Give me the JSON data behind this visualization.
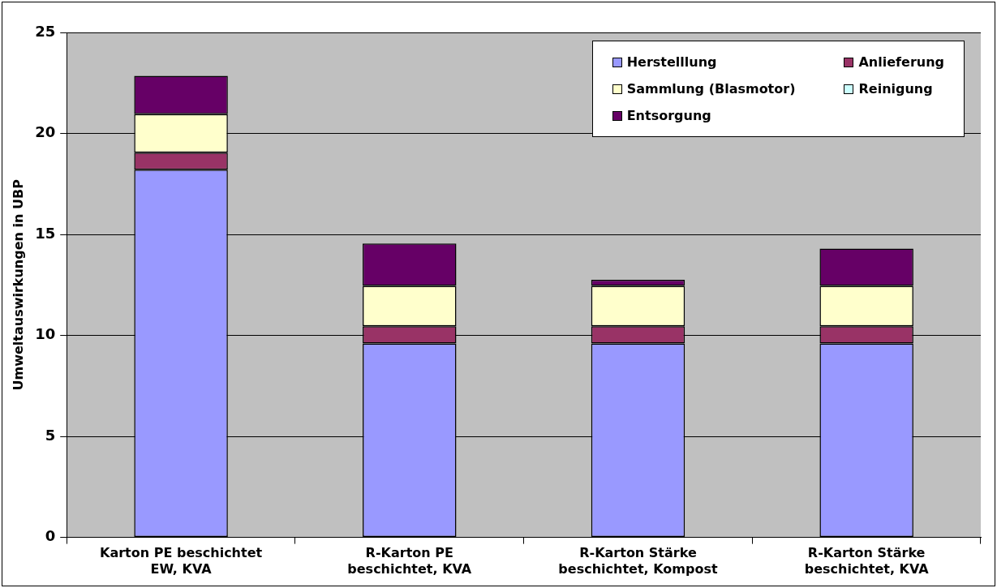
{
  "chart_data": {
    "type": "bar",
    "stacked": true,
    "ylabel": "Umweltauswirkungen in UBP",
    "categories": [
      "Karton PE beschichtet EW, KVA",
      "R-Karton PE beschichtet, KVA",
      "R-Karton Stärke beschichtet, Kompost",
      "R-Karton Stärke beschichtet, KVA"
    ],
    "series": [
      {
        "name": "Herstelllung",
        "color": "#9999ff",
        "values": [
          18.2,
          9.6,
          9.6,
          9.6
        ]
      },
      {
        "name": "Anlieferung",
        "color": "#993366",
        "values": [
          0.85,
          0.85,
          0.85,
          0.85
        ]
      },
      {
        "name": "Sammlung (Blasmotor)",
        "color": "#ffffcc",
        "values": [
          1.9,
          2.0,
          2.0,
          2.0
        ]
      },
      {
        "name": "Reinigung",
        "color": "#ccffff",
        "values": [
          0,
          0,
          0,
          0
        ]
      },
      {
        "name": "Entsorgung",
        "color": "#660066",
        "values": [
          1.9,
          2.1,
          0.3,
          1.85
        ]
      }
    ],
    "ylim": [
      0,
      25
    ],
    "yticks": [
      0,
      5,
      10,
      15,
      20,
      25
    ],
    "grid": "y",
    "legend": "top right"
  }
}
